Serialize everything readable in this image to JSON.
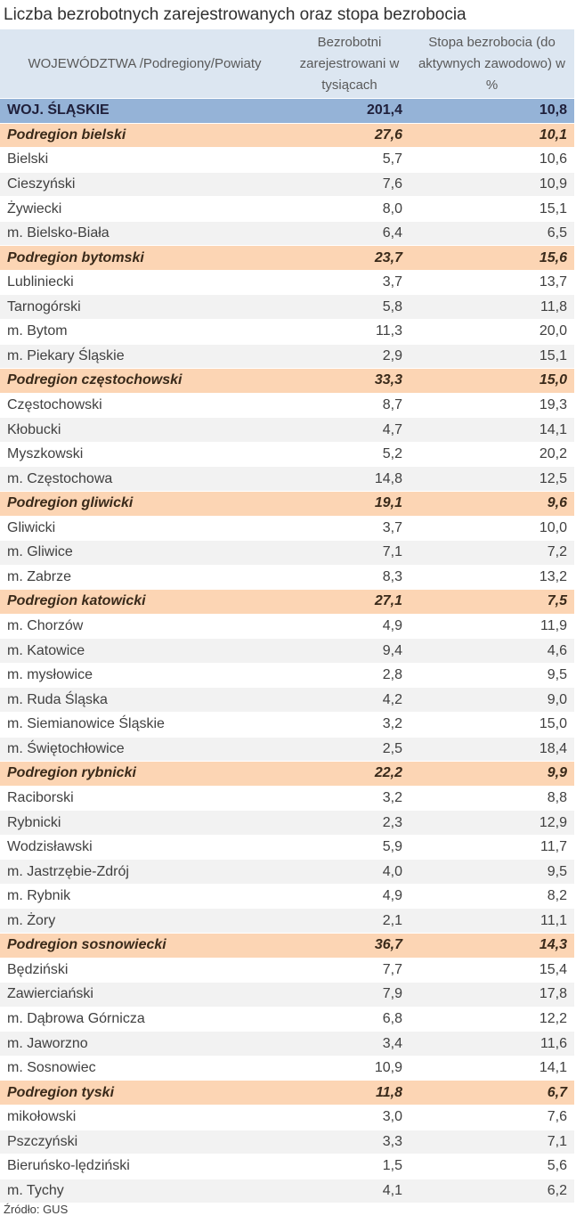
{
  "title": "Liczba bezrobotnych zarejestrowanych oraz stopa bezrobocia",
  "header": [
    "WOJEWÓDZTWA /Podregiony/Powiaty",
    "Bezrobotni zarejestrowani w tysiącach",
    "Stopa bezrobocia (do aktywnych zawodowo) w %"
  ],
  "table": {
    "total": [
      "WOJ. ŚLĄSKIE",
      "201,4",
      "10,8"
    ],
    "regions": [
      {
        "row": [
          "Podregion bielski",
          "27,6",
          "10,1"
        ],
        "districts": [
          [
            "Bielski",
            "5,7",
            "10,6"
          ],
          [
            "Cieszyński",
            "7,6",
            "10,9"
          ],
          [
            "Żywiecki",
            "8,0",
            "15,1"
          ],
          [
            "m. Bielsko-Biała",
            "6,4",
            "6,5"
          ]
        ]
      },
      {
        "row": [
          "Podregion bytomski",
          "23,7",
          "15,6"
        ],
        "districts": [
          [
            "Lubliniecki",
            "3,7",
            "13,7"
          ],
          [
            "Tarnogórski",
            "5,8",
            "11,8"
          ],
          [
            "m. Bytom",
            "11,3",
            "20,0"
          ],
          [
            "m. Piekary Śląskie",
            "2,9",
            "15,1"
          ]
        ]
      },
      {
        "row": [
          "Podregion częstochowski",
          "33,3",
          "15,0"
        ],
        "districts": [
          [
            "Częstochowski",
            "8,7",
            "19,3"
          ],
          [
            "Kłobucki",
            "4,7",
            "14,1"
          ],
          [
            "Myszkowski",
            "5,2",
            "20,2"
          ],
          [
            "m. Częstochowa",
            "14,8",
            "12,5"
          ]
        ]
      },
      {
        "row": [
          "Podregion gliwicki",
          "19,1",
          "9,6"
        ],
        "districts": [
          [
            "Gliwicki",
            "3,7",
            "10,0"
          ],
          [
            "m. Gliwice",
            "7,1",
            "7,2"
          ],
          [
            "m. Zabrze",
            "8,3",
            "13,2"
          ]
        ]
      },
      {
        "row": [
          "Podregion katowicki",
          "27,1",
          "7,5"
        ],
        "districts": [
          [
            "m. Chorzów",
            "4,9",
            "11,9"
          ],
          [
            "m. Katowice",
            "9,4",
            "4,6"
          ],
          [
            "m. mysłowice",
            "2,8",
            "9,5"
          ],
          [
            "m. Ruda Śląska",
            "4,2",
            "9,0"
          ],
          [
            "m. Siemianowice Śląskie",
            "3,2",
            "15,0"
          ],
          [
            "m. Świętochłowice",
            "2,5",
            "18,4"
          ]
        ]
      },
      {
        "row": [
          "Podregion rybnicki",
          "22,2",
          "9,9"
        ],
        "districts": [
          [
            "Raciborski",
            "3,2",
            "8,8"
          ],
          [
            "Rybnicki",
            "2,3",
            "12,9"
          ],
          [
            "Wodzisławski",
            "5,9",
            "11,7"
          ],
          [
            "m. Jastrzębie-Zdrój",
            "4,0",
            "9,5"
          ],
          [
            "m. Rybnik",
            "4,9",
            "8,2"
          ],
          [
            "m. Żory",
            "2,1",
            "11,1"
          ]
        ]
      },
      {
        "row": [
          "Podregion sosnowiecki",
          "36,7",
          "14,3"
        ],
        "districts": [
          [
            "Będziński",
            "7,7",
            "15,4"
          ],
          [
            "Zawierciański",
            "7,9",
            "17,8"
          ],
          [
            "m. Dąbrowa Górnicza",
            "6,8",
            "12,2"
          ],
          [
            "m. Jaworzno",
            "3,4",
            "11,6"
          ],
          [
            "m. Sosnowiec",
            "10,9",
            "14,1"
          ]
        ]
      },
      {
        "row": [
          "Podregion tyski",
          "11,8",
          "6,7"
        ],
        "districts": [
          [
            "mikołowski",
            "3,0",
            "7,6"
          ],
          [
            "Pszczyński",
            "3,3",
            "7,1"
          ],
          [
            "Bieruńsko-lędziński",
            "1,5",
            "5,6"
          ],
          [
            "m. Tychy",
            "4,1",
            "6,2"
          ]
        ]
      }
    ]
  },
  "source": "Źródło: GUS"
}
